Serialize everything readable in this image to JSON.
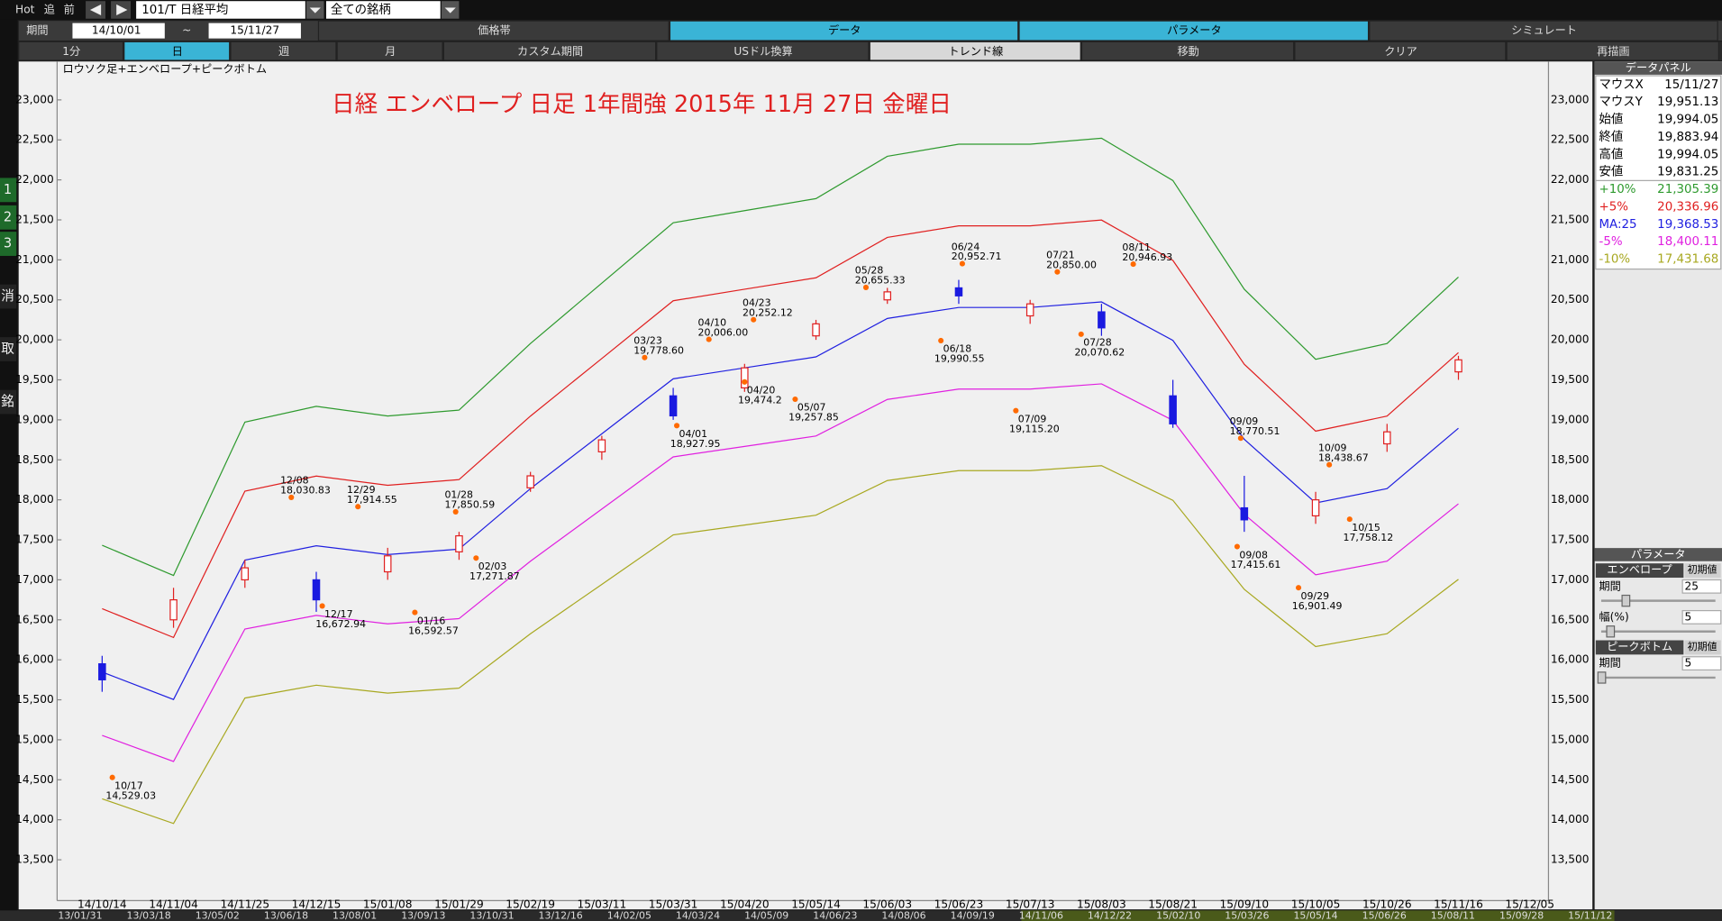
{
  "toolbar": {
    "hot": "Hot",
    "add": "追",
    "prev": "前",
    "symbol": "101/T 日経平均",
    "universe": "全ての銘柄"
  },
  "period_bar": {
    "label": "期間",
    "from": "14/10/01",
    "sep": "~",
    "to": "15/11/27",
    "tabs": [
      "価格帯",
      "データ",
      "パラメータ",
      "シミュレート"
    ]
  },
  "timeframe_bar": [
    "1分",
    "日",
    "週",
    "月",
    "カスタム期間",
    "USドル換算",
    "トレンド線",
    "移動",
    "クリア",
    "再描画"
  ],
  "sidebar": [
    "1",
    "2",
    "3",
    "消",
    "取",
    "銘"
  ],
  "chart_data": {
    "type": "candlestick",
    "subtitle": "ロウソク足+エンベロープ+ピークボトム",
    "title": "日経 エンベロープ 日足 1年間強 2015年 11月 27日 金曜日",
    "categories": [
      "14/10/14",
      "14/11/04",
      "14/11/25",
      "14/12/15",
      "15/01/08",
      "15/01/29",
      "15/02/19",
      "15/03/11",
      "15/03/31",
      "15/04/20",
      "15/05/14",
      "15/06/03",
      "15/06/23",
      "15/07/13",
      "15/08/03",
      "15/08/21",
      "15/09/10",
      "15/10/05",
      "15/10/26",
      "15/11/16",
      "15/12/05"
    ],
    "candles": {
      "up_color": "#e02020",
      "down_color": "#1a1ae0",
      "open": [
        15950,
        16500,
        17000,
        17000,
        17100,
        17350,
        18150,
        18600,
        19300,
        19400,
        20050,
        20500,
        20650,
        20300,
        20350,
        19300,
        17900,
        17800,
        18700,
        19600,
        null
      ],
      "high": [
        16050,
        16900,
        17250,
        17100,
        17400,
        17600,
        18350,
        18800,
        19400,
        19700,
        20250,
        20650,
        20750,
        20500,
        20450,
        19500,
        18300,
        18100,
        18950,
        19800,
        null
      ],
      "low": [
        15600,
        16400,
        16900,
        16600,
        17000,
        17250,
        18100,
        18500,
        19000,
        19350,
        20000,
        20450,
        20450,
        20200,
        20050,
        18900,
        17600,
        17700,
        18600,
        19500,
        null
      ],
      "close": [
        15750,
        16750,
        17150,
        16750,
        17300,
        17550,
        18300,
        18750,
        19050,
        19650,
        20200,
        20600,
        20550,
        20450,
        20150,
        18950,
        17750,
        18000,
        18850,
        19750,
        null
      ]
    },
    "series": [
      {
        "name": "+10%",
        "color": "#2e9a2e",
        "values": [
          17432,
          17054,
          18972,
          19169,
          19048,
          19122,
          19954,
          20709,
          21464,
          21615,
          21766,
          22295,
          22446,
          22446,
          22521,
          21992,
          20633,
          19757,
          19954,
          20785,
          null
        ]
      },
      {
        "name": "+5%",
        "color": "#e02020",
        "values": [
          16639,
          16279,
          18109,
          18297,
          18182,
          18253,
          19047,
          19767,
          20489,
          20633,
          20776,
          21281,
          21425,
          21425,
          21498,
          20993,
          19695,
          18859,
          19047,
          19840,
          null
        ]
      },
      {
        "name": "MA:25",
        "color": "#2020e0",
        "values": [
          15847,
          15504,
          17247,
          17426,
          17316,
          17384,
          18140,
          18826,
          19513,
          19650,
          19787,
          20268,
          20405,
          20405,
          20474,
          19993,
          18757,
          17961,
          18140,
          18895,
          null
        ]
      },
      {
        "name": "-5%",
        "color": "#e020e0",
        "values": [
          15055,
          14729,
          16385,
          16555,
          16450,
          16515,
          17233,
          17885,
          18537,
          18668,
          18798,
          19255,
          19385,
          19385,
          19450,
          18993,
          17819,
          17063,
          17233,
          17950,
          null
        ]
      },
      {
        "name": "-10%",
        "color": "#a8a820",
        "values": [
          14262,
          13954,
          15522,
          15683,
          15584,
          15646,
          16326,
          16943,
          17562,
          17685,
          17808,
          18241,
          18365,
          18365,
          18427,
          17994,
          16881,
          16165,
          16326,
          17006,
          null
        ]
      }
    ],
    "peaks": [
      {
        "date": "10/17",
        "value": 14529.03,
        "label": "14,529.03",
        "kind": "bottom"
      },
      {
        "date": "12/08",
        "value": 18030.83,
        "label": "18,030.83",
        "kind": "peak"
      },
      {
        "date": "12/17",
        "value": 16672.94,
        "label": "16,672.94",
        "kind": "bottom"
      },
      {
        "date": "12/29",
        "value": 17914.55,
        "label": "17,914.55",
        "kind": "peak"
      },
      {
        "date": "01/16",
        "value": 16592.57,
        "label": "16,592.57",
        "kind": "bottom"
      },
      {
        "date": "01/28",
        "value": 17850.59,
        "label": "17,850.59",
        "kind": "peak"
      },
      {
        "date": "02/03",
        "value": 17271.87,
        "label": "17,271.87",
        "kind": "bottom"
      },
      {
        "date": "03/23",
        "value": 19778.6,
        "label": "19,778.60",
        "kind": "peak"
      },
      {
        "date": "04/01",
        "value": 18927.95,
        "label": "18,927.95",
        "kind": "bottom"
      },
      {
        "date": "04/10",
        "value": 20006,
        "label": "20,006.00",
        "kind": "peak"
      },
      {
        "date": "04/20",
        "value": 19474.2,
        "label": "19,474.2",
        "kind": "bottom"
      },
      {
        "date": "04/23",
        "value": 20252.12,
        "label": "20,252.12",
        "kind": "peak"
      },
      {
        "date": "05/07",
        "value": 19257.85,
        "label": "19,257.85",
        "kind": "bottom"
      },
      {
        "date": "05/28",
        "value": 20655.33,
        "label": "20,655.33",
        "kind": "peak"
      },
      {
        "date": "06/18",
        "value": 19990.55,
        "label": "19,990.55",
        "kind": "bottom"
      },
      {
        "date": "06/24",
        "value": 20952.71,
        "label": "20,952.71",
        "kind": "peak"
      },
      {
        "date": "07/09",
        "value": 19115.2,
        "label": "19,115.20",
        "kind": "bottom"
      },
      {
        "date": "07/21",
        "value": 20850,
        "label": "20,850.00",
        "kind": "peak"
      },
      {
        "date": "07/28",
        "value": 20070.62,
        "label": "20,070.62",
        "kind": "bottom"
      },
      {
        "date": "08/11",
        "value": 20946.93,
        "label": "20,946.93",
        "kind": "peak"
      },
      {
        "date": "09/08",
        "value": 17415.61,
        "label": "17,415.61",
        "kind": "bottom"
      },
      {
        "date": "09/09",
        "value": 18770.51,
        "label": "18,770.51",
        "kind": "peak"
      },
      {
        "date": "09/29",
        "value": 16901.49,
        "label": "16,901.49",
        "kind": "bottom"
      },
      {
        "date": "10/09",
        "value": 18438.67,
        "label": "18,438.67",
        "kind": "peak"
      },
      {
        "date": "10/15",
        "value": 17758.12,
        "label": "17,758.12",
        "kind": "bottom"
      }
    ],
    "ylim": [
      12990,
      23480
    ],
    "yticks": [
      {
        "value": 13500,
        "label": "13,500"
      },
      {
        "value": 14000,
        "label": "14,000"
      },
      {
        "value": 14500,
        "label": "14,500"
      },
      {
        "value": 15000,
        "label": "15,000"
      },
      {
        "value": 15500,
        "label": "15,500"
      },
      {
        "value": 16000,
        "label": "16,000"
      },
      {
        "value": 16500,
        "label": "16,500"
      },
      {
        "value": 17000,
        "label": "17,000"
      },
      {
        "value": 17500,
        "label": "17,500"
      },
      {
        "value": 18000,
        "label": "18,000"
      },
      {
        "value": 18500,
        "label": "18,500"
      },
      {
        "value": 19000,
        "label": "19,000"
      },
      {
        "value": 19500,
        "label": "19,500"
      },
      {
        "value": 20000,
        "label": "20,000"
      },
      {
        "value": 20500,
        "label": "20,500"
      },
      {
        "value": 21000,
        "label": "21,000"
      },
      {
        "value": 21500,
        "label": "21,500"
      },
      {
        "value": 22000,
        "label": "22,000"
      },
      {
        "value": 22500,
        "label": "22,500"
      },
      {
        "value": 23000,
        "label": "23,000"
      }
    ],
    "grid": false
  },
  "data_panel": {
    "title": "データパネル",
    "rows": [
      {
        "label": "マウスX",
        "value": "15/11/27",
        "color": "#000000"
      },
      {
        "label": "マウスY",
        "value": "19,951.13",
        "color": "#000000"
      },
      {
        "label": "始値",
        "value": "19,994.05",
        "color": "#000000"
      },
      {
        "label": "終値",
        "value": "19,883.94",
        "color": "#000000"
      },
      {
        "label": "高値",
        "value": "19,994.05",
        "color": "#000000"
      },
      {
        "label": "安値",
        "value": "19,831.25",
        "color": "#000000"
      },
      {
        "label": "+10%",
        "value": "21,305.39",
        "color": "#2e9a2e"
      },
      {
        "label": "+5%",
        "value": "20,336.96",
        "color": "#e02020"
      },
      {
        "label": "MA:25",
        "value": "19,368.53",
        "color": "#2020e0"
      },
      {
        "label": "-5%",
        "value": "18,400.11",
        "color": "#e020e0"
      },
      {
        "label": "-10%",
        "value": "17,431.68",
        "color": "#a8a820"
      }
    ]
  },
  "param_panel": {
    "title": "パラメータ",
    "envelope": {
      "name": "エンベロープ",
      "reset": "初期値",
      "period_label": "期間",
      "period": 25,
      "width_label": "幅(%)",
      "width": 5
    },
    "peak_bottom": {
      "name": "ピークボトム",
      "reset": "初期値",
      "period_label": "期間",
      "period": 5
    }
  },
  "navigator": [
    "13/01/31",
    "13/03/18",
    "13/05/02",
    "13/06/18",
    "13/08/01",
    "13/09/13",
    "13/10/31",
    "13/12/16",
    "14/02/05",
    "14/03/24",
    "14/05/09",
    "14/06/23",
    "14/08/06",
    "14/09/19",
    "14/11/06",
    "14/12/22",
    "15/02/10",
    "15/03/26",
    "15/05/14",
    "15/06/26",
    "15/08/11",
    "15/09/28",
    "15/11/12"
  ]
}
